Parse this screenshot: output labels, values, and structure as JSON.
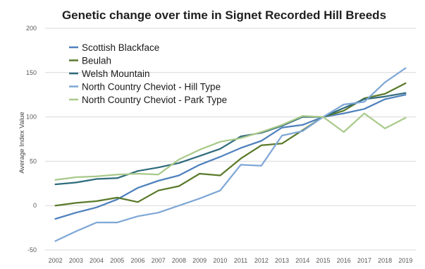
{
  "chart_data": {
    "type": "line",
    "title": "Genetic change over time in Signet Recorded Hill Breeds",
    "xlabel": "",
    "ylabel": "Average Index Value",
    "ylim": [
      -50,
      200
    ],
    "yticks": [
      -50,
      0,
      50,
      100,
      150,
      200
    ],
    "grid": true,
    "legend_position": "top-left",
    "categories": [
      "2002",
      "2003",
      "2004",
      "2005",
      "2006",
      "2007",
      "2008",
      "2009",
      "2010",
      "2011",
      "2012",
      "2013",
      "2014",
      "2015",
      "2016",
      "2017",
      "2018",
      "2019"
    ],
    "series": [
      {
        "name": "Scottish Blackface",
        "color": "#4f81bd",
        "values": [
          -15,
          -8,
          -2,
          7,
          20,
          28,
          34,
          46,
          55,
          65,
          73,
          88,
          91,
          100,
          104,
          109,
          120,
          125
        ]
      },
      {
        "name": "Beulah",
        "color": "#5a7a2a",
        "values": [
          0,
          3,
          5,
          9,
          4,
          17,
          22,
          36,
          34,
          53,
          68,
          70,
          85,
          100,
          107,
          121,
          126,
          138
        ]
      },
      {
        "name": "Welsh Mountain",
        "color": "#2f6b7d",
        "values": [
          24,
          26,
          30,
          31,
          39,
          43,
          48,
          56,
          64,
          78,
          82,
          90,
          100,
          100,
          110,
          120,
          123,
          127
        ]
      },
      {
        "name": "North Country Cheviot - Hill Type",
        "color": "#7fa7d6",
        "values": [
          -40,
          -29,
          -19,
          -19,
          -12,
          -8,
          0,
          8,
          17,
          46,
          45,
          79,
          84,
          100,
          114,
          117,
          139,
          155
        ]
      },
      {
        "name": "North Country Cheviot - Park Type",
        "color": "#a9c98a",
        "values": [
          29,
          32,
          33,
          35,
          36,
          35,
          52,
          63,
          72,
          76,
          83,
          91,
          101,
          100,
          83,
          104,
          87,
          99
        ]
      }
    ]
  }
}
